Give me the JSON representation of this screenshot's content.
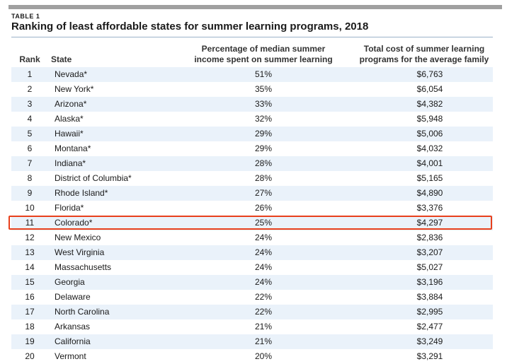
{
  "table_label": "TABLE 1",
  "title": "Ranking of least affordable states for summer learning programs, 2018",
  "columns": {
    "rank": "Rank",
    "state": "State",
    "pct": "Percentage of median summer income spent on summer learning programs",
    "cost": "Total cost of summer learning programs for the average family"
  },
  "highlight_color": "#e8401c",
  "chart_data": {
    "type": "table",
    "title": "Ranking of least affordable states for summer learning programs, 2018",
    "headers": [
      "Rank",
      "State",
      "Percentage of median summer income spent on summer learning programs",
      "Total cost of summer learning programs for the average family"
    ],
    "highlighted_rank": 11,
    "rows": [
      {
        "rank": "1",
        "state": "Nevada*",
        "pct": "51%",
        "cost": "$6,763"
      },
      {
        "rank": "2",
        "state": "New York*",
        "pct": "35%",
        "cost": "$6,054"
      },
      {
        "rank": "3",
        "state": "Arizona*",
        "pct": "33%",
        "cost": "$4,382"
      },
      {
        "rank": "4",
        "state": "Alaska*",
        "pct": "32%",
        "cost": "$5,948"
      },
      {
        "rank": "5",
        "state": "Hawaii*",
        "pct": "29%",
        "cost": "$5,006"
      },
      {
        "rank": "6",
        "state": "Montana*",
        "pct": "29%",
        "cost": "$4,032"
      },
      {
        "rank": "7",
        "state": "Indiana*",
        "pct": "28%",
        "cost": "$4,001"
      },
      {
        "rank": "8",
        "state": "District of Columbia*",
        "pct": "28%",
        "cost": "$5,165"
      },
      {
        "rank": "9",
        "state": "Rhode Island*",
        "pct": "27%",
        "cost": "$4,890"
      },
      {
        "rank": "10",
        "state": "Florida*",
        "pct": "26%",
        "cost": "$3,376"
      },
      {
        "rank": "11",
        "state": "Colorado*",
        "pct": "25%",
        "cost": "$4,297"
      },
      {
        "rank": "12",
        "state": "New Mexico",
        "pct": "24%",
        "cost": "$2,836"
      },
      {
        "rank": "13",
        "state": "West Virginia",
        "pct": "24%",
        "cost": "$3,207"
      },
      {
        "rank": "14",
        "state": "Massachusetts",
        "pct": "24%",
        "cost": "$5,027"
      },
      {
        "rank": "15",
        "state": "Georgia",
        "pct": "24%",
        "cost": "$3,196"
      },
      {
        "rank": "16",
        "state": "Delaware",
        "pct": "22%",
        "cost": "$3,884"
      },
      {
        "rank": "17",
        "state": "North Carolina",
        "pct": "22%",
        "cost": "$2,995"
      },
      {
        "rank": "18",
        "state": "Arkansas",
        "pct": "21%",
        "cost": "$2,477"
      },
      {
        "rank": "19",
        "state": "California",
        "pct": "21%",
        "cost": "$3,249"
      },
      {
        "rank": "20",
        "state": "Vermont",
        "pct": "20%",
        "cost": "$3,291"
      }
    ]
  }
}
